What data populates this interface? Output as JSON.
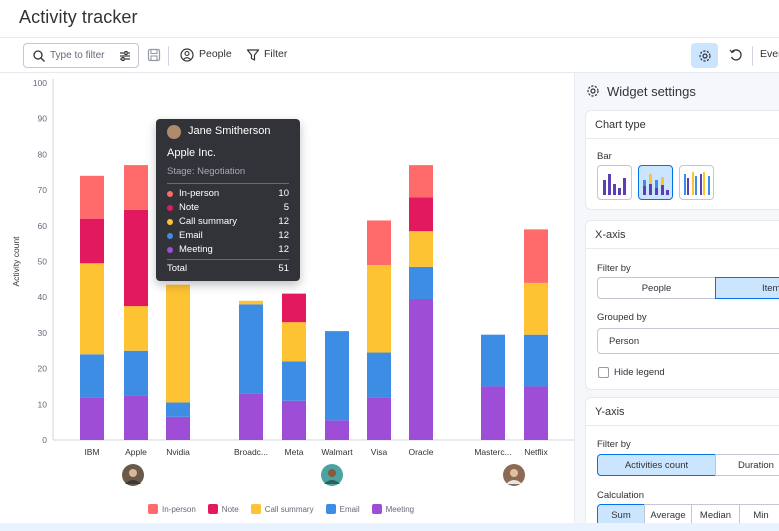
{
  "app": {
    "title": "Activity tracker"
  },
  "toolbar": {
    "search_placeholder": "Type to filter",
    "people_label": "People",
    "filter_label": "Filter",
    "right_cut_label": "Ever"
  },
  "panel": {
    "title": "Widget settings",
    "chart_type": {
      "header": "Chart type",
      "label": "Bar"
    },
    "x_axis": {
      "header": "X-axis",
      "filter_by_label": "Filter by",
      "filter_options": [
        "People",
        "Item"
      ],
      "filter_selected": "Item",
      "grouped_by_label": "Grouped by",
      "grouped_by_value": "Person",
      "hide_legend_label": "Hide legend"
    },
    "y_axis": {
      "header": "Y-axis",
      "filter_by_label": "Filter by",
      "filter_options": [
        "Activities count",
        "Duration"
      ],
      "filter_selected": "Activities count",
      "calculation_label": "Calculation",
      "calc_options": [
        "Sum",
        "Average",
        "Median",
        "Min"
      ],
      "calc_selected": "Sum"
    }
  },
  "tooltip": {
    "person": "Jane Smitherson",
    "item": "Apple Inc.",
    "stage": "Stage: Negotiation",
    "rows": [
      {
        "label": "In-person",
        "value": "10",
        "color": "#ff6b6b"
      },
      {
        "label": "Note",
        "value": "5",
        "color": "#e2195f"
      },
      {
        "label": "Call summary",
        "value": "12",
        "color": "#fdc333"
      },
      {
        "label": "Email",
        "value": "12",
        "color": "#3d8de5"
      },
      {
        "label": "Meeting",
        "value": "12",
        "color": "#9e4dd6"
      }
    ],
    "total_label": "Total",
    "total_value": "51"
  },
  "chart_data": {
    "type": "bar",
    "stacked": true,
    "ylabel": "Activity count",
    "ylim": [
      0,
      100
    ],
    "yticks": [
      0,
      10,
      20,
      30,
      40,
      50,
      60,
      70,
      80,
      90,
      100
    ],
    "grid": false,
    "legend_position": "bottom",
    "categories": [
      "IBM",
      "Apple",
      "Nvidia",
      "Broadc...",
      "Meta",
      "Walmart",
      "Visa",
      "Oracle",
      "Masterc...",
      "Netflix"
    ],
    "series": [
      {
        "name": "Meeting",
        "color": "#9e4dd6",
        "values": [
          12,
          12.5,
          6.5,
          13,
          11,
          5.5,
          12,
          39.5,
          15,
          15
        ]
      },
      {
        "name": "Email",
        "color": "#3d8de5",
        "values": [
          12,
          12.5,
          4,
          25,
          11,
          25,
          12.5,
          9,
          14.5,
          14.5
        ]
      },
      {
        "name": "Call summary",
        "color": "#fdc333",
        "values": [
          25.5,
          12.5,
          33,
          1,
          11,
          0,
          24.5,
          10,
          0,
          14.5
        ]
      },
      {
        "name": "Note",
        "color": "#e2195f",
        "values": [
          12.5,
          27,
          0,
          0,
          8,
          0,
          0,
          9.5,
          0,
          0
        ]
      },
      {
        "name": "In-person",
        "color": "#ff6b6b",
        "values": [
          12,
          12.5,
          0,
          0,
          0,
          0,
          12.5,
          9,
          0,
          15
        ]
      }
    ]
  }
}
